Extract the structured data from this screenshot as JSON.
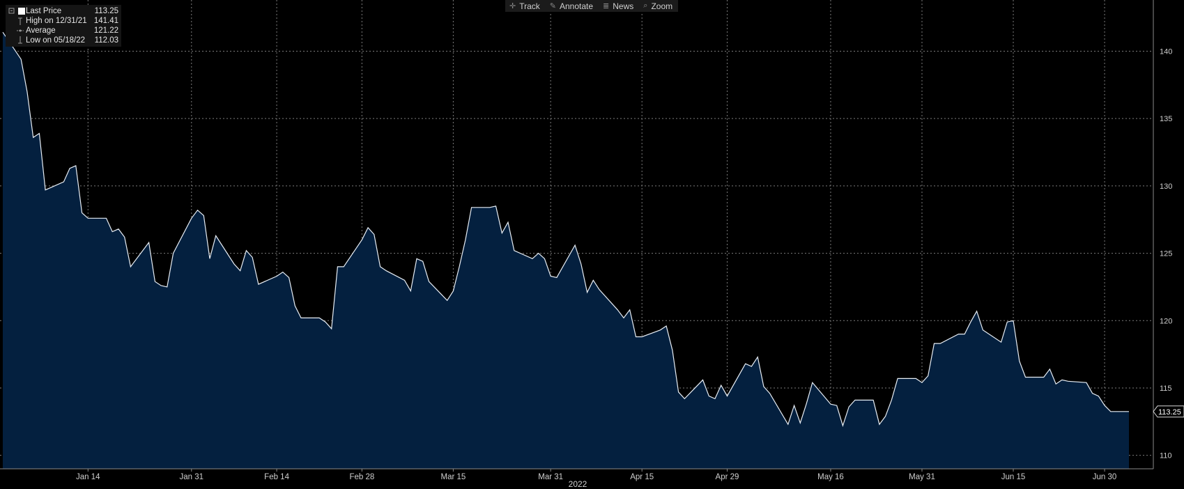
{
  "toolbar": {
    "track": "Track",
    "annotate": "Annotate",
    "news": "News",
    "zoom": "Zoom"
  },
  "legend": {
    "last_price": {
      "label": "Last Price",
      "value": "113.25"
    },
    "high": {
      "label": "High on 12/31/21",
      "value": "141.41"
    },
    "average": {
      "label": "Average",
      "value": "121.22"
    },
    "low": {
      "label": "Low on 05/18/22",
      "value": "112.03"
    }
  },
  "colors": {
    "line": "#e8eef5",
    "fill": "#04203f",
    "grid": "#7c7c7c",
    "background": "#000000"
  },
  "chart_data": {
    "type": "area",
    "xlabel": "2022",
    "ylabel": "",
    "ylim": [
      109,
      143.8
    ],
    "yticks": [
      110,
      115,
      120,
      125,
      130,
      135,
      140
    ],
    "xticks": [
      {
        "label": "Jan 14",
        "date": "2022-01-14"
      },
      {
        "label": "Jan 31",
        "date": "2022-01-31"
      },
      {
        "label": "Feb 14",
        "date": "2022-02-14"
      },
      {
        "label": "Feb 28",
        "date": "2022-02-28"
      },
      {
        "label": "Mar 15",
        "date": "2022-03-15"
      },
      {
        "label": "Mar 31",
        "date": "2022-03-31"
      },
      {
        "label": "Apr 15",
        "date": "2022-04-15"
      },
      {
        "label": "Apr 29",
        "date": "2022-04-29"
      },
      {
        "label": "May 16",
        "date": "2022-05-16"
      },
      {
        "label": "May 31",
        "date": "2022-05-31"
      },
      {
        "label": "Jun 15",
        "date": "2022-06-15"
      },
      {
        "label": "Jun 30",
        "date": "2022-06-30"
      }
    ],
    "last_value_label": "113.25",
    "series": [
      {
        "dates": [
          "2021-12-31",
          "2022-01-03",
          "2022-01-04",
          "2022-01-05",
          "2022-01-06",
          "2022-01-07",
          "2022-01-10",
          "2022-01-11",
          "2022-01-12",
          "2022-01-13",
          "2022-01-14",
          "2022-01-17",
          "2022-01-18",
          "2022-01-19",
          "2022-01-20",
          "2022-01-21",
          "2022-01-24",
          "2022-01-25",
          "2022-01-26",
          "2022-01-27",
          "2022-01-28",
          "2022-01-31",
          "2022-02-01",
          "2022-02-02",
          "2022-02-03",
          "2022-02-04",
          "2022-02-07",
          "2022-02-08",
          "2022-02-09",
          "2022-02-10",
          "2022-02-11",
          "2022-02-14",
          "2022-02-15",
          "2022-02-16",
          "2022-02-17",
          "2022-02-18",
          "2022-02-21",
          "2022-02-22",
          "2022-02-23",
          "2022-02-24",
          "2022-02-25",
          "2022-02-28",
          "2022-03-01",
          "2022-03-02",
          "2022-03-03",
          "2022-03-04",
          "2022-03-07",
          "2022-03-08",
          "2022-03-09",
          "2022-03-10",
          "2022-03-11",
          "2022-03-14",
          "2022-03-15",
          "2022-03-16",
          "2022-03-17",
          "2022-03-18",
          "2022-03-21",
          "2022-03-22",
          "2022-03-23",
          "2022-03-24",
          "2022-03-25",
          "2022-03-28",
          "2022-03-29",
          "2022-03-30",
          "2022-03-31",
          "2022-04-01",
          "2022-04-04",
          "2022-04-05",
          "2022-04-06",
          "2022-04-07",
          "2022-04-08",
          "2022-04-11",
          "2022-04-12",
          "2022-04-13",
          "2022-04-14",
          "2022-04-15",
          "2022-04-18",
          "2022-04-19",
          "2022-04-20",
          "2022-04-21",
          "2022-04-22",
          "2022-04-25",
          "2022-04-26",
          "2022-04-27",
          "2022-04-28",
          "2022-04-29",
          "2022-05-02",
          "2022-05-03",
          "2022-05-04",
          "2022-05-05",
          "2022-05-06",
          "2022-05-09",
          "2022-05-10",
          "2022-05-11",
          "2022-05-12",
          "2022-05-13",
          "2022-05-16",
          "2022-05-17",
          "2022-05-18",
          "2022-05-19",
          "2022-05-20",
          "2022-05-23",
          "2022-05-24",
          "2022-05-25",
          "2022-05-26",
          "2022-05-27",
          "2022-05-30",
          "2022-05-31",
          "2022-06-01",
          "2022-06-02",
          "2022-06-03",
          "2022-06-06",
          "2022-06-07",
          "2022-06-08",
          "2022-06-09",
          "2022-06-10",
          "2022-06-13",
          "2022-06-14",
          "2022-06-15",
          "2022-06-16",
          "2022-06-17",
          "2022-06-20",
          "2022-06-21",
          "2022-06-22",
          "2022-06-23",
          "2022-06-24",
          "2022-06-27",
          "2022-06-28",
          "2022-06-29",
          "2022-06-30",
          "2022-07-01",
          "2022-07-04"
        ],
        "values": [
          141.41,
          139.4,
          137.0,
          133.6,
          133.9,
          129.7,
          130.3,
          131.3,
          131.5,
          128.0,
          127.6,
          127.6,
          126.6,
          126.8,
          126.2,
          124.0,
          125.8,
          122.9,
          122.6,
          122.5,
          125.0,
          127.6,
          128.2,
          127.8,
          124.6,
          126.3,
          124.2,
          123.7,
          125.2,
          124.7,
          122.7,
          123.3,
          123.6,
          123.2,
          121.1,
          120.2,
          120.2,
          119.9,
          119.4,
          124.0,
          124.0,
          126.0,
          126.9,
          126.4,
          124.0,
          123.7,
          123.0,
          122.2,
          124.6,
          124.4,
          122.9,
          121.5,
          122.2,
          124.0,
          126.0,
          128.4,
          128.4,
          128.5,
          126.5,
          127.3,
          125.2,
          124.6,
          125.0,
          124.6,
          123.3,
          123.2,
          125.6,
          124.2,
          122.1,
          123.0,
          122.3,
          120.8,
          120.2,
          120.8,
          118.8,
          118.8,
          119.3,
          119.6,
          117.8,
          114.7,
          114.2,
          115.6,
          114.4,
          114.2,
          115.2,
          114.4,
          116.8,
          116.6,
          117.3,
          115.1,
          114.6,
          112.3,
          113.7,
          112.4,
          113.8,
          115.4,
          113.8,
          113.7,
          112.2,
          113.6,
          114.1,
          114.1,
          112.3,
          112.9,
          114.1,
          115.7,
          115.7,
          115.4,
          115.9,
          118.3,
          118.3,
          119.0,
          119.0,
          119.9,
          120.7,
          119.3,
          118.4,
          119.9,
          120.0,
          117.0,
          115.8,
          115.8,
          116.4,
          115.3,
          115.6,
          115.5,
          115.4,
          114.6,
          114.4,
          113.7,
          113.25,
          113.25
        ]
      }
    ]
  }
}
